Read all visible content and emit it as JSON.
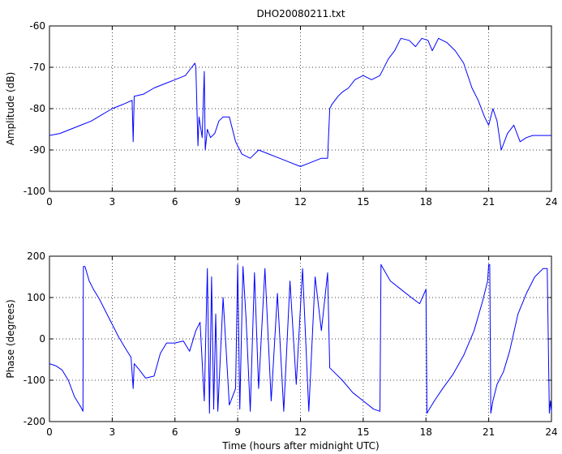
{
  "chart_data": [
    {
      "type": "line",
      "title": "DHO20080211.txt",
      "xlabel": "",
      "ylabel": "Amplitude (dB)",
      "xlim": [
        0,
        24
      ],
      "ylim": [
        -100,
        -60
      ],
      "xticks": [
        "0",
        "3",
        "6",
        "9",
        "12",
        "15",
        "18",
        "21",
        "24"
      ],
      "yticks": [
        "-60",
        "-70",
        "-80",
        "-90",
        "-100"
      ],
      "grid": true,
      "series": [
        {
          "color": "#0000ff",
          "x": [
            0,
            0.5,
            1,
            1.5,
            2,
            2.5,
            3,
            3.5,
            3.95,
            4.0,
            4.05,
            4.5,
            5,
            5.5,
            6,
            6.5,
            6.8,
            6.95,
            7.0,
            7.1,
            7.15,
            7.3,
            7.4,
            7.45,
            7.55,
            7.7,
            7.9,
            8.1,
            8.3,
            8.6,
            8.9,
            9.2,
            9.6,
            10,
            10.5,
            11,
            11.5,
            12,
            12.5,
            13,
            13.3,
            13.4,
            13.5,
            13.8,
            14,
            14.3,
            14.6,
            15,
            15.4,
            15.8,
            16.2,
            16.5,
            16.8,
            17.2,
            17.5,
            17.8,
            18.1,
            18.3,
            18.6,
            19,
            19.4,
            19.8,
            20.2,
            20.5,
            20.8,
            21.0,
            21.2,
            21.4,
            21.6,
            21.9,
            22.2,
            22.5,
            22.8,
            23.1,
            23.5,
            24
          ],
          "y": [
            -86.5,
            -86,
            -85,
            -84,
            -83,
            -81.5,
            -80,
            -79,
            -78,
            -88,
            -77,
            -76.5,
            -75,
            -74,
            -73,
            -72,
            -70,
            -69,
            -70,
            -89,
            -82,
            -87,
            -71,
            -90,
            -85,
            -87,
            -86,
            -83,
            -82,
            -82,
            -88,
            -91,
            -92,
            -90,
            -91,
            -92,
            -93,
            -94,
            -93,
            -92,
            -92,
            -80,
            -79,
            -77,
            -76,
            -75,
            -73,
            -72,
            -73,
            -72,
            -68,
            -66,
            -63,
            -63.5,
            -65,
            -63,
            -63.5,
            -66,
            -63,
            -64,
            -66,
            -69,
            -75,
            -78,
            -82,
            -84,
            -80,
            -83,
            -90,
            -86,
            -84,
            -88,
            -87,
            -86.5,
            -86.5,
            -86.5
          ]
        }
      ]
    },
    {
      "type": "line",
      "title": "",
      "xlabel": "Time (hours after midnight UTC)",
      "ylabel": "Phase (degrees)",
      "xlim": [
        0,
        24
      ],
      "ylim": [
        -200,
        200
      ],
      "xticks": [
        "0",
        "3",
        "6",
        "9",
        "12",
        "15",
        "18",
        "21",
        "24"
      ],
      "yticks": [
        "200",
        "100",
        "0",
        "-100",
        "-200"
      ],
      "grid": true,
      "series": [
        {
          "color": "#0000ff",
          "x": [
            0,
            0.3,
            0.6,
            0.9,
            1.2,
            1.5,
            1.6,
            1.62,
            1.7,
            1.9,
            2.1,
            2.4,
            2.7,
            3.0,
            3.3,
            3.6,
            3.9,
            4.0,
            4.05,
            4.3,
            4.6,
            5.0,
            5.3,
            5.6,
            6.0,
            6.4,
            6.7,
            7.0,
            7.2,
            7.4,
            7.55,
            7.65,
            7.75,
            7.85,
            7.95,
            8.05,
            8.3,
            8.6,
            8.9,
            9.0,
            9.1,
            9.25,
            9.4,
            9.6,
            9.8,
            10.0,
            10.3,
            10.6,
            10.9,
            11.2,
            11.5,
            11.8,
            12.1,
            12.4,
            12.7,
            13.0,
            13.3,
            13.4,
            13.6,
            14.0,
            14.5,
            15.0,
            15.5,
            15.8,
            15.85,
            15.9,
            16.3,
            16.8,
            17.3,
            17.7,
            18.0,
            18.05,
            18.1,
            18.4,
            18.8,
            19.3,
            19.8,
            20.3,
            20.7,
            20.95,
            21.0,
            21.05,
            21.1,
            21.2,
            21.4,
            21.7,
            22.0,
            22.4,
            22.8,
            23.2,
            23.6,
            23.8,
            23.9,
            23.95,
            24.0
          ],
          "y": [
            -60,
            -65,
            -75,
            -100,
            -140,
            -165,
            -175,
            175,
            175,
            140,
            120,
            95,
            65,
            35,
            5,
            -20,
            -45,
            -120,
            -60,
            -75,
            -95,
            -90,
            -35,
            -10,
            -10,
            -5,
            -30,
            20,
            40,
            -150,
            170,
            -180,
            150,
            -170,
            60,
            -175,
            100,
            -160,
            -120,
            180,
            -170,
            175,
            50,
            -175,
            160,
            -120,
            170,
            -150,
            110,
            -175,
            140,
            -110,
            170,
            -175,
            150,
            20,
            160,
            -70,
            -80,
            -100,
            -130,
            -150,
            -170,
            -175,
            180,
            175,
            140,
            120,
            100,
            85,
            120,
            -180,
            -175,
            -150,
            -120,
            -85,
            -40,
            20,
            90,
            140,
            180,
            180,
            -180,
            -150,
            -110,
            -80,
            -30,
            60,
            110,
            150,
            170,
            170,
            -180,
            -150,
            -175
          ]
        }
      ]
    }
  ]
}
